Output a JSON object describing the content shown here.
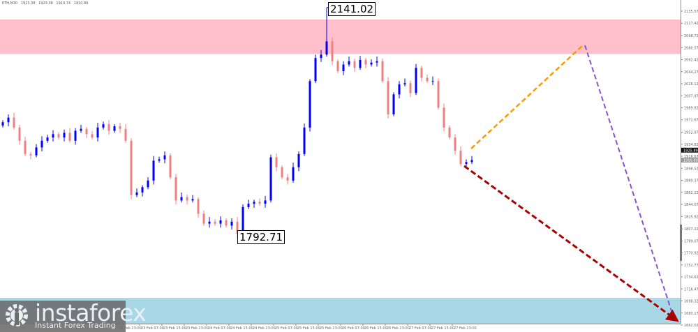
{
  "header": {
    "symbol": "ETH,M30",
    "open": "1923.38",
    "high": "1923.38",
    "low": "1910.74",
    "close": "1910.89"
  },
  "logo": {
    "name": "instaforex",
    "tagline": "Instant Forex Trading"
  },
  "colors": {
    "bull": "#0000ff",
    "bear": "#f08080",
    "resistance_zone": "#ffc0cb",
    "support_zone": "#a8d8e6",
    "forecast_up": "#ff9900",
    "forecast_down": "#8855cc",
    "forecast_main": "#aa0000"
  },
  "chart_data": {
    "type": "candlestick",
    "ylim": [
      1662.02,
      2135.57
    ],
    "y_ticks": [
      "2135.57",
      "2117.42",
      "2098.72",
      "2080.57",
      "2062.42",
      "2044.27",
      "2026.12",
      "2007.97",
      "1989.82",
      "1971.67",
      "1952.97",
      "1934.82",
      "1916.67",
      "1898.52",
      "1880.37",
      "1862.22",
      "1844.07",
      "1825.92",
      "1807.22",
      "1789.07",
      "1770.92",
      "1752.77",
      "1734.62",
      "1716.47",
      "1698.32",
      "1680.17",
      "1662.02"
    ],
    "x_ticks": [
      "22 Feb 23:00",
      "23 Feb 07:00",
      "23 Feb 15:00",
      "23 Feb 23:00",
      "24 Feb 07:00",
      "24 Feb 15:00",
      "24 Feb 23:00",
      "25 Feb 07:00",
      "25 Feb 15:00",
      "25 Feb 23:00",
      "26 Feb 07:00",
      "26 Feb 15:00",
      "26 Feb 23:00",
      "27 Feb 07:00",
      "27 Feb 15:00",
      "27 Feb 23:00"
    ],
    "closes": [
      1968,
      1975,
      1960,
      1940,
      1920,
      1918,
      1930,
      1940,
      1945,
      1950,
      1945,
      1952,
      1940,
      1955,
      1958,
      1950,
      1945,
      1960,
      1965,
      1955,
      1962,
      1958,
      1940,
      1858,
      1862,
      1870,
      1880,
      1910,
      1912,
      1918,
      1885,
      1850,
      1855,
      1850,
      1852,
      1830,
      1815,
      1818,
      1815,
      1820,
      1812,
      1818,
      1800,
      1840,
      1845,
      1848,
      1845,
      1850,
      1915,
      1900,
      1885,
      1880,
      1900,
      1920,
      1960,
      2030,
      2065,
      2070,
      2090,
      2060,
      2045,
      2055,
      2060,
      2050,
      2062,
      2055,
      2058,
      2060,
      2030,
      1980,
      2010,
      2025,
      2027,
      2012,
      2050,
      2035,
      2030,
      2030,
      1990,
      1960,
      1945,
      1925,
      1905,
      1908,
      1911
    ],
    "current_bid": "1925.89",
    "current_ask": "1910.89",
    "high_label": "2141.02",
    "low_label": "1792.71",
    "resistance_zone": [
      2071,
      2123
    ],
    "support_zone": [
      1652,
      1703
    ]
  }
}
